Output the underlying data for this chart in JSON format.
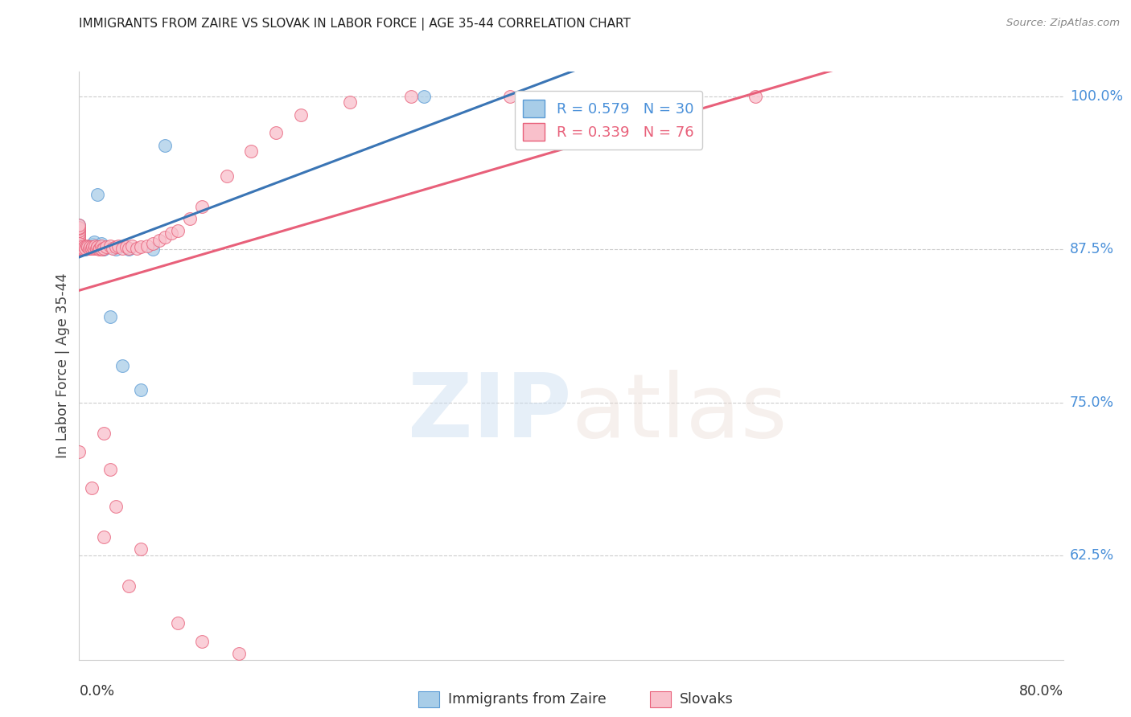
{
  "title": "IMMIGRANTS FROM ZAIRE VS SLOVAK IN LABOR FORCE | AGE 35-44 CORRELATION CHART",
  "source": "Source: ZipAtlas.com",
  "ylabel": "In Labor Force | Age 35-44",
  "xlim": [
    0.0,
    0.8
  ],
  "ylim": [
    0.54,
    1.02
  ],
  "ytick_vals": [
    0.625,
    0.75,
    0.875,
    1.0
  ],
  "ytick_labels": [
    "62.5%",
    "75.0%",
    "87.5%",
    "100.0%"
  ],
  "legend_zaire": "R = 0.579   N = 30",
  "legend_slovak": "R = 0.339   N = 76",
  "color_zaire_fill": "#a8cde8",
  "color_zaire_edge": "#5b9bd5",
  "color_slovak_fill": "#f9c0cb",
  "color_slovak_edge": "#e8607a",
  "color_zaire_line": "#3a75b5",
  "color_slovak_line": "#e8607a",
  "color_tick_label": "#4a90d9",
  "color_legend_zaire_text": "#4a90d9",
  "color_legend_slovak_text": "#e8607a",
  "grid_color": "#cccccc",
  "zaire_x": [
    0.0,
    0.0,
    0.0,
    0.0,
    0.0,
    0.0,
    0.001,
    0.001,
    0.002,
    0.003,
    0.003,
    0.004,
    0.005,
    0.005,
    0.007,
    0.008,
    0.01,
    0.011,
    0.012,
    0.015,
    0.018,
    0.02,
    0.025,
    0.03,
    0.035,
    0.04,
    0.05,
    0.06,
    0.07,
    0.28
  ],
  "zaire_y": [
    0.875,
    0.878,
    0.882,
    0.886,
    0.89,
    0.895,
    0.875,
    0.878,
    0.876,
    0.875,
    0.878,
    0.877,
    0.875,
    0.877,
    0.876,
    0.878,
    0.877,
    0.879,
    0.881,
    0.92,
    0.88,
    0.875,
    0.82,
    0.875,
    0.78,
    0.875,
    0.76,
    0.875,
    0.96,
    1.0
  ],
  "slovak_x": [
    0.0,
    0.0,
    0.0,
    0.0,
    0.0,
    0.0,
    0.0,
    0.0,
    0.0,
    0.0,
    0.0,
    0.0,
    0.0,
    0.0,
    0.0,
    0.0,
    0.0,
    0.0,
    0.001,
    0.002,
    0.003,
    0.004,
    0.005,
    0.006,
    0.007,
    0.008,
    0.009,
    0.01,
    0.011,
    0.012,
    0.013,
    0.014,
    0.015,
    0.016,
    0.017,
    0.018,
    0.019,
    0.02,
    0.022,
    0.025,
    0.027,
    0.03,
    0.032,
    0.035,
    0.038,
    0.04,
    0.043,
    0.047,
    0.05,
    0.055,
    0.06,
    0.065,
    0.07,
    0.075,
    0.08,
    0.09,
    0.1,
    0.12,
    0.14,
    0.16,
    0.18,
    0.22,
    0.27,
    0.35,
    0.55,
    0.0,
    0.01,
    0.02,
    0.04,
    0.08,
    0.1,
    0.13,
    0.02,
    0.025,
    0.03,
    0.05
  ],
  "slovak_y": [
    0.875,
    0.876,
    0.877,
    0.879,
    0.88,
    0.881,
    0.882,
    0.884,
    0.886,
    0.888,
    0.89,
    0.892,
    0.893,
    0.895,
    0.875,
    0.876,
    0.878,
    0.88,
    0.876,
    0.877,
    0.876,
    0.877,
    0.876,
    0.878,
    0.877,
    0.876,
    0.877,
    0.876,
    0.877,
    0.876,
    0.878,
    0.876,
    0.877,
    0.875,
    0.876,
    0.878,
    0.875,
    0.876,
    0.877,
    0.878,
    0.876,
    0.877,
    0.878,
    0.876,
    0.877,
    0.876,
    0.878,
    0.876,
    0.877,
    0.878,
    0.88,
    0.882,
    0.885,
    0.888,
    0.89,
    0.9,
    0.91,
    0.935,
    0.955,
    0.97,
    0.985,
    0.995,
    1.0,
    1.0,
    1.0,
    0.71,
    0.68,
    0.64,
    0.6,
    0.57,
    0.555,
    0.545,
    0.725,
    0.695,
    0.665,
    0.63
  ]
}
